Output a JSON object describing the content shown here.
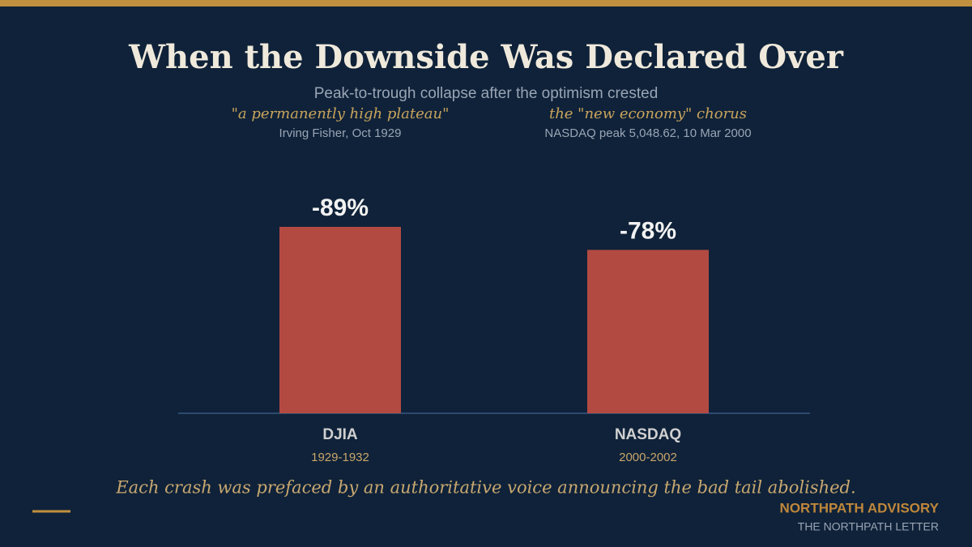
{
  "chart_data": {
    "type": "bar",
    "title": "When the Downside Was Declared Over",
    "subtitle": "Peak-to-trough collapse after the optimism crested",
    "quotes": [
      "\"a permanently high plateau\"",
      "the \"new economy\" chorus"
    ],
    "attributions": [
      "Irving Fisher, Oct 1929",
      "NASDAQ peak 5,048.62, 10 Mar 2000"
    ],
    "categories": [
      "DJIA",
      "NASDAQ"
    ],
    "periods": [
      "1929-1932",
      "2000-2002"
    ],
    "values": [
      -89,
      -78
    ],
    "value_labels": [
      "-89%",
      "-78%"
    ],
    "color": "#b34a42",
    "ylim": [
      0,
      -100
    ],
    "footnote": "Each crash was prefaced by an authoritative voice announcing the bad tail abolished.",
    "brand": "NORTHPATH ADVISORY",
    "publication": "THE NORTHPATH LETTER"
  }
}
